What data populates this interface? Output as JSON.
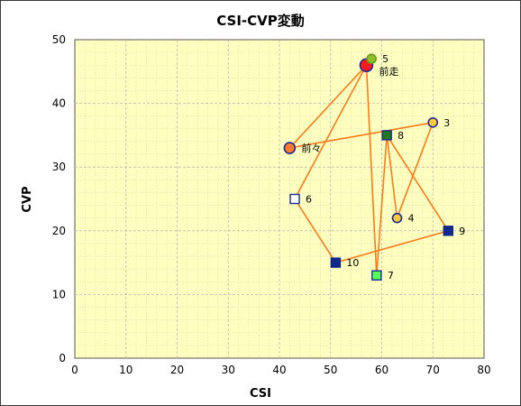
{
  "chart_data": {
    "type": "scatter",
    "title": "CSI-CVP変動",
    "xlabel": "CSI",
    "ylabel": "CVP",
    "xlim": [
      0,
      80
    ],
    "ylim": [
      0,
      50
    ],
    "x_ticks": [
      "0",
      "10",
      "20",
      "30",
      "40",
      "50",
      "60",
      "70",
      "80"
    ],
    "y_ticks": [
      "0",
      "10",
      "20",
      "30",
      "40",
      "50"
    ],
    "grid": true,
    "colors": {
      "plot_bg": "#ffffc0",
      "grid": "#b8b8b8",
      "line": "#ff7a1a",
      "navy": "#1a2b9a",
      "marker_yellow": "#ffc83a",
      "marker_orange": "#ff7a2a",
      "marker_red": "#ff1a1a",
      "marker_green": "#8abf2a",
      "square_navy": "#0f2a8a",
      "square_green": "#1f7a1f",
      "square_lime": "#55ff55",
      "square_white": "#ffffff"
    },
    "points": [
      {
        "label": "前々",
        "x": 42,
        "y": 33,
        "marker": "circle",
        "fill": "#ff7a2a",
        "stroke": "#1a2b9a",
        "size": 6
      },
      {
        "label": "前走",
        "x": 57,
        "y": 46,
        "marker": "circle",
        "fill": "#ff1a1a",
        "stroke": "#1a2b9a",
        "size": 7
      },
      {
        "label": "3",
        "x": 70,
        "y": 37,
        "marker": "circle",
        "fill": "#ffc83a",
        "stroke": "#1a2b9a",
        "size": 5
      },
      {
        "label": "4",
        "x": 63,
        "y": 22,
        "marker": "circle",
        "fill": "#ffc83a",
        "stroke": "#1a2b9a",
        "size": 5
      },
      {
        "label": "5",
        "x": 58,
        "y": 47,
        "marker": "circle",
        "fill": "#8abf2a",
        "stroke": "#6a9a1a",
        "size": 5
      },
      {
        "label": "6",
        "x": 43,
        "y": 25,
        "marker": "square",
        "fill": "#ffffff",
        "stroke": "#1a2b9a",
        "size": 5
      },
      {
        "label": "7",
        "x": 59,
        "y": 13,
        "marker": "square",
        "fill": "#55ff55",
        "stroke": "#1a2b9a",
        "size": 5
      },
      {
        "label": "8",
        "x": 61,
        "y": 35,
        "marker": "square",
        "fill": "#1f7a1f",
        "stroke": "#1a2b9a",
        "size": 5
      },
      {
        "label": "9",
        "x": 73,
        "y": 20,
        "marker": "square",
        "fill": "#0f2a8a",
        "stroke": "#0f2a8a",
        "size": 5
      },
      {
        "label": "10",
        "x": 51,
        "y": 15,
        "marker": "square",
        "fill": "#0f2a8a",
        "stroke": "#0f2a8a",
        "size": 5
      }
    ],
    "path_order": [
      "前々",
      "3",
      "4",
      "8",
      "9",
      "10",
      "6",
      "前走",
      "前々"
    ],
    "path_order_2": [
      "前走",
      "7",
      "8"
    ]
  }
}
